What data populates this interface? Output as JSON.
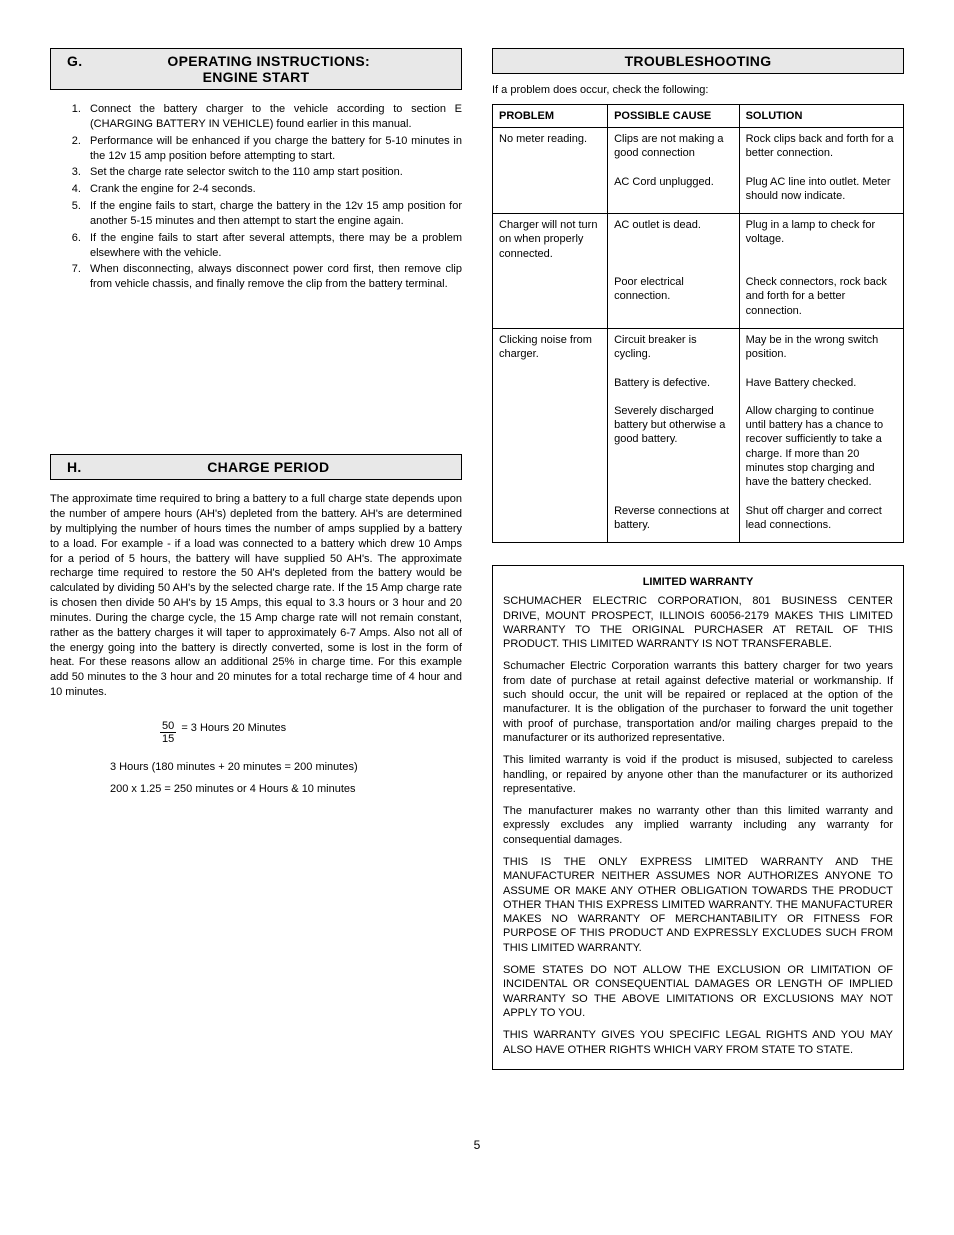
{
  "left": {
    "sectionG": {
      "letter": "G.",
      "title": "OPERATING INSTRUCTIONS: ENGINE START",
      "items": [
        "Connect the battery charger to the vehicle according to section E (CHARGING BATTERY IN VEHICLE) found earlier in this manual.",
        "Performance will be enhanced if you charge the battery for 5-10 minutes in the 12v 15 amp position before attempting to start.",
        "Set the charge rate selector switch to the 110 amp start position.",
        "Crank the engine for 2-4 seconds.",
        "If the engine fails to start, charge the battery in the 12v 15 amp position for another 5-15 minutes and then attempt to start the engine again.",
        "If the engine fails to start after several attempts, there may be a problem elsewhere with the vehicle.",
        "When disconnecting, always disconnect power cord first, then remove clip from vehicle chassis, and finally remove the clip from the battery terminal."
      ]
    },
    "sectionH": {
      "letter": "H.",
      "title": "CHARGE PERIOD",
      "body": "The approximate time required to bring a battery to a full charge state depends upon the number of ampere hours (AH's) depleted from the battery. AH's are determined by multiplying the number of hours times the number of amps supplied by a battery to a load. For example - if a load was connected to a battery which drew 10 Amps for a period of 5 hours, the battery will have supplied 50 AH's. The approximate recharge time required to restore the 50 AH's depleted from the battery would be calculated by dividing 50 AH's by the selected charge rate. If the 15 Amp charge rate is chosen then divide 50 AH's by 15 Amps, this equal to 3.3 hours or 3 hour and 20 minutes. During the charge cycle, the 15 Amp charge rate will not remain constant, rather as the battery charges it will taper to approximately 6-7 Amps. Also not all of the energy going into the battery is directly converted, some is lost in the form of heat. For these reasons allow an additional 25% in charge time. For this example add 50 minutes to the 3 hour and 20 minutes for a total recharge time of 4 hour and 10 minutes.",
      "frac_num": "50",
      "frac_den": "15",
      "frac_result": "=  3 Hours 20 Minutes",
      "calc1": "3 Hours (180 minutes +  20 minutes = 200 minutes)",
      "calc2": "200 x 1.25 = 250 minutes  or 4 Hours & 10 minutes"
    }
  },
  "right": {
    "troubleshooting": {
      "title": "TROUBLESHOOTING",
      "intro": "If a problem does occur, check the following:",
      "headers": {
        "c1": "PROBLEM",
        "c2": "POSSIBLE CAUSE",
        "c3": "SOLUTION"
      },
      "rows": [
        {
          "group": 0,
          "first": true,
          "problem": "No meter reading.",
          "cause": "Clips are not making a good connection",
          "solution": "Rock clips back and forth for a better connection."
        },
        {
          "group": 0,
          "last": true,
          "problem": "",
          "cause": "AC Cord unplugged.",
          "solution": "Plug AC line into outlet. Meter should now indicate."
        },
        {
          "group": 1,
          "first": true,
          "problem": "Charger will not turn on when properly connected.",
          "cause": "AC outlet is dead.",
          "solution": "Plug in a lamp to check for voltage."
        },
        {
          "group": 1,
          "last": true,
          "problem": "",
          "cause": "Poor electrical connection.",
          "solution": "Check connectors, rock back and forth for a better connection."
        },
        {
          "group": 2,
          "first": true,
          "problem": "Clicking noise from charger.",
          "cause": "Circuit breaker is cycling.",
          "solution": "May be in the wrong switch position."
        },
        {
          "group": 2,
          "problem": "",
          "cause": "Battery is defective.",
          "solution": "Have Battery checked."
        },
        {
          "group": 2,
          "problem": "",
          "cause": "Severely discharged battery but otherwise a good battery.",
          "solution": "Allow charging to continue until battery has a chance to recover sufficiently to take a charge. If more than 20 minutes stop charging and have the battery checked."
        },
        {
          "group": 2,
          "last": true,
          "problem": "",
          "cause": "Reverse connections at battery.",
          "solution": "Shut off charger and correct lead connections."
        }
      ]
    },
    "warranty": {
      "title": "LIMITED WARRANTY",
      "paragraphs": [
        "SCHUMACHER ELECTRIC CORPORATION, 801 BUSINESS CENTER DRIVE, MOUNT PROSPECT, ILLINOIS 60056-2179 MAKES THIS LIMITED WARRANTY TO THE ORIGINAL PURCHASER AT RETAIL OF THIS PRODUCT. THIS LIMITED WARRANTY IS NOT TRANSFERABLE.",
        "Schumacher Electric Corporation warrants this battery charger for two years from date of purchase at retail against defective material or workmanship. If such should occur, the unit will be repaired or replaced at the option of the manufacturer. It is the obligation of the purchaser to forward the unit together with proof of purchase, transportation and/or mailing charges prepaid to the manufacturer or its authorized representative.",
        "This limited warranty is void if the product is misused, subjected to careless handling, or repaired by anyone other than the manufacturer or its authorized representative.",
        "The manufacturer makes no warranty other than this limited warranty and expressly excludes any implied warranty including any warranty for consequential damages.",
        "THIS IS THE ONLY EXPRESS LIMITED WARRANTY AND THE MANUFACTURER NEITHER ASSUMES NOR AUTHORIZES ANYONE TO ASSUME OR MAKE ANY OTHER OBLIGATION TOWARDS THE PRODUCT OTHER THAN THIS EXPRESS LIMITED WARRANTY. THE MANUFACTURER MAKES NO WARRANTY OF MERCHANTABILITY OR FITNESS FOR PURPOSE OF THIS PRODUCT AND EXPRESSLY EXCLUDES SUCH FROM THIS LIMITED WARRANTY.",
        "SOME STATES DO NOT ALLOW THE EXCLUSION OR LIMITATION OF INCIDENTAL OR CONSEQUENTIAL DAMAGES OR LENGTH OF IMPLIED WARRANTY SO THE ABOVE LIMITATIONS OR EXCLUSIONS MAY NOT APPLY TO YOU.",
        "THIS WARRANTY GIVES YOU SPECIFIC LEGAL RIGHTS AND YOU MAY ALSO HAVE OTHER RIGHTS WHICH VARY FROM STATE TO STATE."
      ]
    }
  },
  "page_number": "5"
}
